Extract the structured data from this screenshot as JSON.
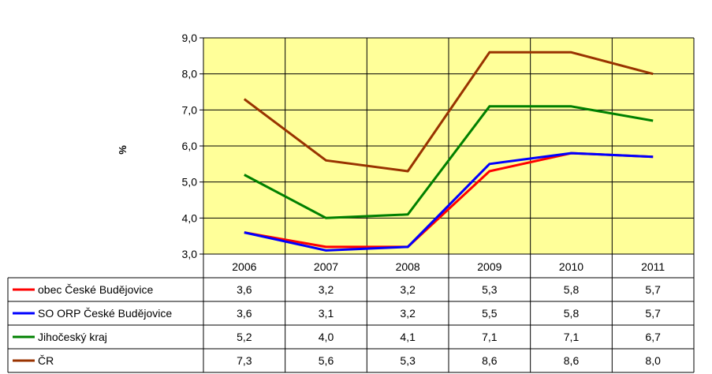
{
  "chart_data": {
    "type": "line",
    "ylabel": "%",
    "ylim": [
      3.0,
      9.0
    ],
    "y_ticks": [
      "3,0",
      "4,0",
      "5,0",
      "6,0",
      "7,0",
      "8,0",
      "9,0"
    ],
    "categories": [
      "2006",
      "2007",
      "2008",
      "2009",
      "2010",
      "2011"
    ],
    "grid": true,
    "legend": "data-table-left",
    "plot_background": "#ffff99",
    "series": [
      {
        "name": "obec České Budějovice",
        "color": "#ff0000",
        "values": [
          3.6,
          3.2,
          3.2,
          5.3,
          5.8,
          5.7
        ],
        "labels": [
          "3,6",
          "3,2",
          "3,2",
          "5,3",
          "5,8",
          "5,7"
        ]
      },
      {
        "name": "SO ORP České Budějovice",
        "color": "#0000ff",
        "values": [
          3.6,
          3.1,
          3.2,
          5.5,
          5.8,
          5.7
        ],
        "labels": [
          "3,6",
          "3,1",
          "3,2",
          "5,5",
          "5,8",
          "5,7"
        ]
      },
      {
        "name": "Jihočeský kraj",
        "color": "#008000",
        "values": [
          5.2,
          4.0,
          4.1,
          7.1,
          7.1,
          6.7
        ],
        "labels": [
          "5,2",
          "4,0",
          "4,1",
          "7,1",
          "7,1",
          "6,7"
        ]
      },
      {
        "name": "ČR",
        "color": "#993300",
        "values": [
          7.3,
          5.6,
          5.3,
          8.6,
          8.6,
          8.0
        ],
        "labels": [
          "7,3",
          "5,6",
          "5,3",
          "8,6",
          "8,6",
          "8,0"
        ]
      }
    ]
  }
}
